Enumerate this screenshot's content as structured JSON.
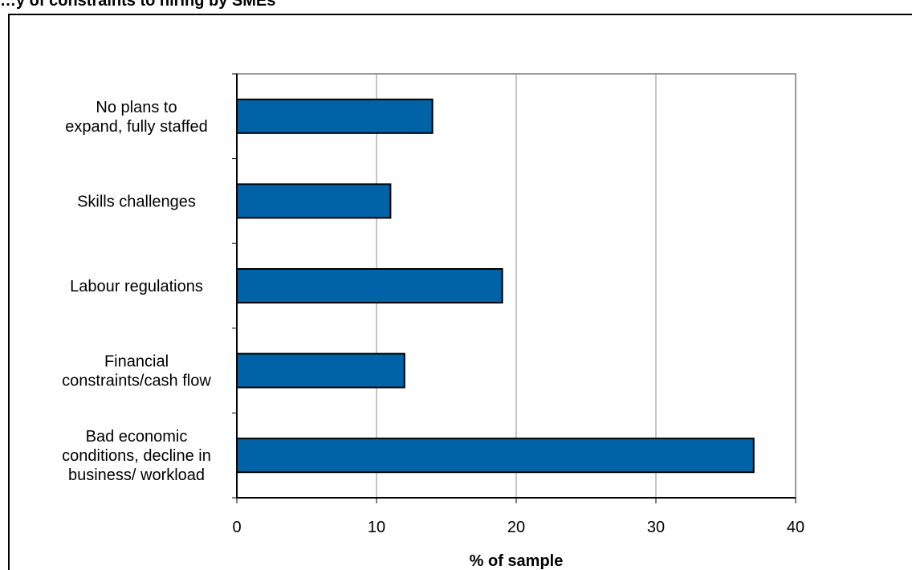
{
  "chart_data": {
    "type": "bar",
    "orientation": "horizontal",
    "title": "…y of constraints to hiring by SMEs",
    "xlabel": "% of sample",
    "ylabel": "",
    "categories": [
      [
        "No plans to",
        "expand, fully staffed"
      ],
      [
        "Skills challenges"
      ],
      [
        "Labour regulations"
      ],
      [
        "Financial",
        "constraints/cash flow"
      ],
      [
        "Bad economic",
        "conditions, decline in",
        "business/ workload"
      ]
    ],
    "values": [
      14,
      11,
      19,
      12,
      37
    ],
    "xlim": [
      0,
      40
    ],
    "xticks": [
      0,
      10,
      20,
      30,
      40
    ],
    "grid": "vertical",
    "bar_color": "#0063A8",
    "legend": "none"
  }
}
